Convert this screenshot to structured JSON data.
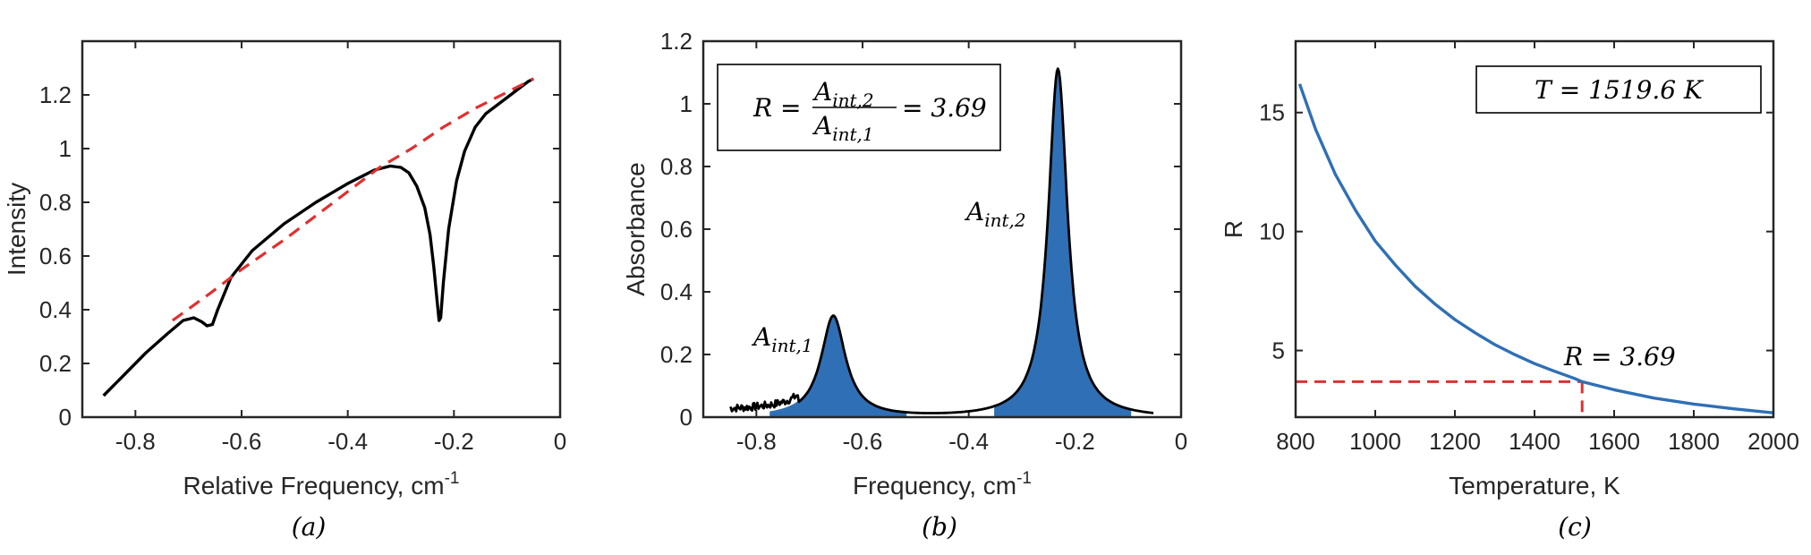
{
  "chart_data": [
    {
      "type": "line",
      "panel_label": "(a)",
      "xlabel": "Relative Frequency, cm",
      "xlabel_sup": "-1",
      "ylabel": "Intensity",
      "xlim": [
        -0.9,
        0
      ],
      "ylim": [
        0,
        1.4
      ],
      "xticks": [
        -0.8,
        -0.6,
        -0.4,
        -0.2,
        0
      ],
      "xtick_labels": [
        "-0.8",
        "-0.6",
        "-0.4",
        "-0.2",
        "0"
      ],
      "yticks": [
        0,
        0.2,
        0.4,
        0.6,
        0.8,
        1,
        1.2
      ],
      "ytick_labels": [
        "0",
        "0.2",
        "0.4",
        "0.6",
        "0.8",
        "1",
        "1.2"
      ],
      "series": [
        {
          "style": "solid",
          "color": "#000000",
          "x": [
            -0.86,
            -0.82,
            -0.78,
            -0.74,
            -0.71,
            -0.69,
            -0.675,
            -0.665,
            -0.655,
            -0.645,
            -0.62,
            -0.58,
            -0.52,
            -0.46,
            -0.4,
            -0.35,
            -0.32,
            -0.3,
            -0.285,
            -0.27,
            -0.255,
            -0.245,
            -0.238,
            -0.232,
            -0.228,
            -0.225,
            -0.22,
            -0.21,
            -0.195,
            -0.18,
            -0.16,
            -0.14,
            -0.12,
            -0.1,
            -0.08,
            -0.06,
            -0.05
          ],
          "y": [
            0.08,
            0.16,
            0.24,
            0.31,
            0.36,
            0.37,
            0.355,
            0.34,
            0.345,
            0.4,
            0.52,
            0.62,
            0.72,
            0.8,
            0.87,
            0.92,
            0.935,
            0.93,
            0.91,
            0.86,
            0.78,
            0.68,
            0.56,
            0.44,
            0.36,
            0.37,
            0.5,
            0.7,
            0.88,
            0.99,
            1.08,
            1.13,
            1.16,
            1.19,
            1.22,
            1.25,
            1.26
          ]
        },
        {
          "style": "dashed",
          "color": "#e03030",
          "x": [
            -0.73,
            -0.66,
            -0.6,
            -0.52,
            -0.46,
            -0.4,
            -0.34,
            -0.28,
            -0.22,
            -0.16,
            -0.1,
            -0.05
          ],
          "y": [
            0.36,
            0.46,
            0.55,
            0.66,
            0.75,
            0.84,
            0.93,
            1.0,
            1.08,
            1.15,
            1.21,
            1.26
          ]
        }
      ]
    },
    {
      "type": "area",
      "panel_label": "(b)",
      "xlabel": "Frequency, cm",
      "xlabel_sup": "-1",
      "ylabel": "Absorbance",
      "xlim": [
        -0.9,
        0
      ],
      "ylim": [
        0,
        1.2
      ],
      "xticks": [
        -0.8,
        -0.6,
        -0.4,
        -0.2,
        0
      ],
      "xtick_labels": [
        "-0.8",
        "-0.6",
        "-0.4",
        "-0.2",
        "0"
      ],
      "yticks": [
        0,
        0.2,
        0.4,
        0.6,
        0.8,
        1,
        1.2
      ],
      "ytick_labels": [
        "0",
        "0.2",
        "0.4",
        "0.6",
        "0.8",
        "1",
        "1.2"
      ],
      "fill_color": "#2f6fb5",
      "peaks": [
        {
          "center": -0.655,
          "height": 0.325,
          "width": 0.028,
          "label_main": "A",
          "label_sub": "int,1"
        },
        {
          "center": -0.232,
          "height": 1.115,
          "width": 0.022,
          "label_main": "A",
          "label_sub": "int,2"
        }
      ],
      "noise_range": [
        -0.85,
        -0.72
      ],
      "equation_box": {
        "lhs": "R =",
        "num_main": "A",
        "num_sub": "int,2",
        "den_main": "A",
        "den_sub": "int,1",
        "rhs": "= 3.69"
      }
    },
    {
      "type": "line",
      "panel_label": "(c)",
      "xlabel": "Temperature, K",
      "ylabel": "R",
      "xlim": [
        800,
        2000
      ],
      "ylim": [
        2.2,
        18
      ],
      "xticks": [
        800,
        1000,
        1200,
        1400,
        1600,
        1800,
        2000
      ],
      "xtick_labels": [
        "800",
        "1000",
        "1200",
        "1400",
        "1600",
        "1800",
        "2000"
      ],
      "yticks": [
        5,
        10,
        15
      ],
      "ytick_labels": [
        "5",
        "10",
        "15"
      ],
      "series": [
        {
          "style": "solid",
          "color": "#2f6fb5",
          "x": [
            810,
            850,
            900,
            950,
            1000,
            1050,
            1100,
            1150,
            1200,
            1250,
            1300,
            1350,
            1400,
            1450,
            1500,
            1519.6,
            1600,
            1700,
            1800,
            1900,
            2000
          ],
          "y": [
            16.2,
            14.3,
            12.4,
            10.9,
            9.6,
            8.6,
            7.7,
            6.95,
            6.3,
            5.75,
            5.25,
            4.83,
            4.45,
            4.13,
            3.83,
            3.69,
            3.35,
            3.0,
            2.75,
            2.55,
            2.38
          ]
        }
      ],
      "reference": {
        "x": 1519.6,
        "y": 3.69,
        "color": "#e03030"
      },
      "point_label": "R = 3.69",
      "title_box": "T = 1519.6 K"
    }
  ]
}
